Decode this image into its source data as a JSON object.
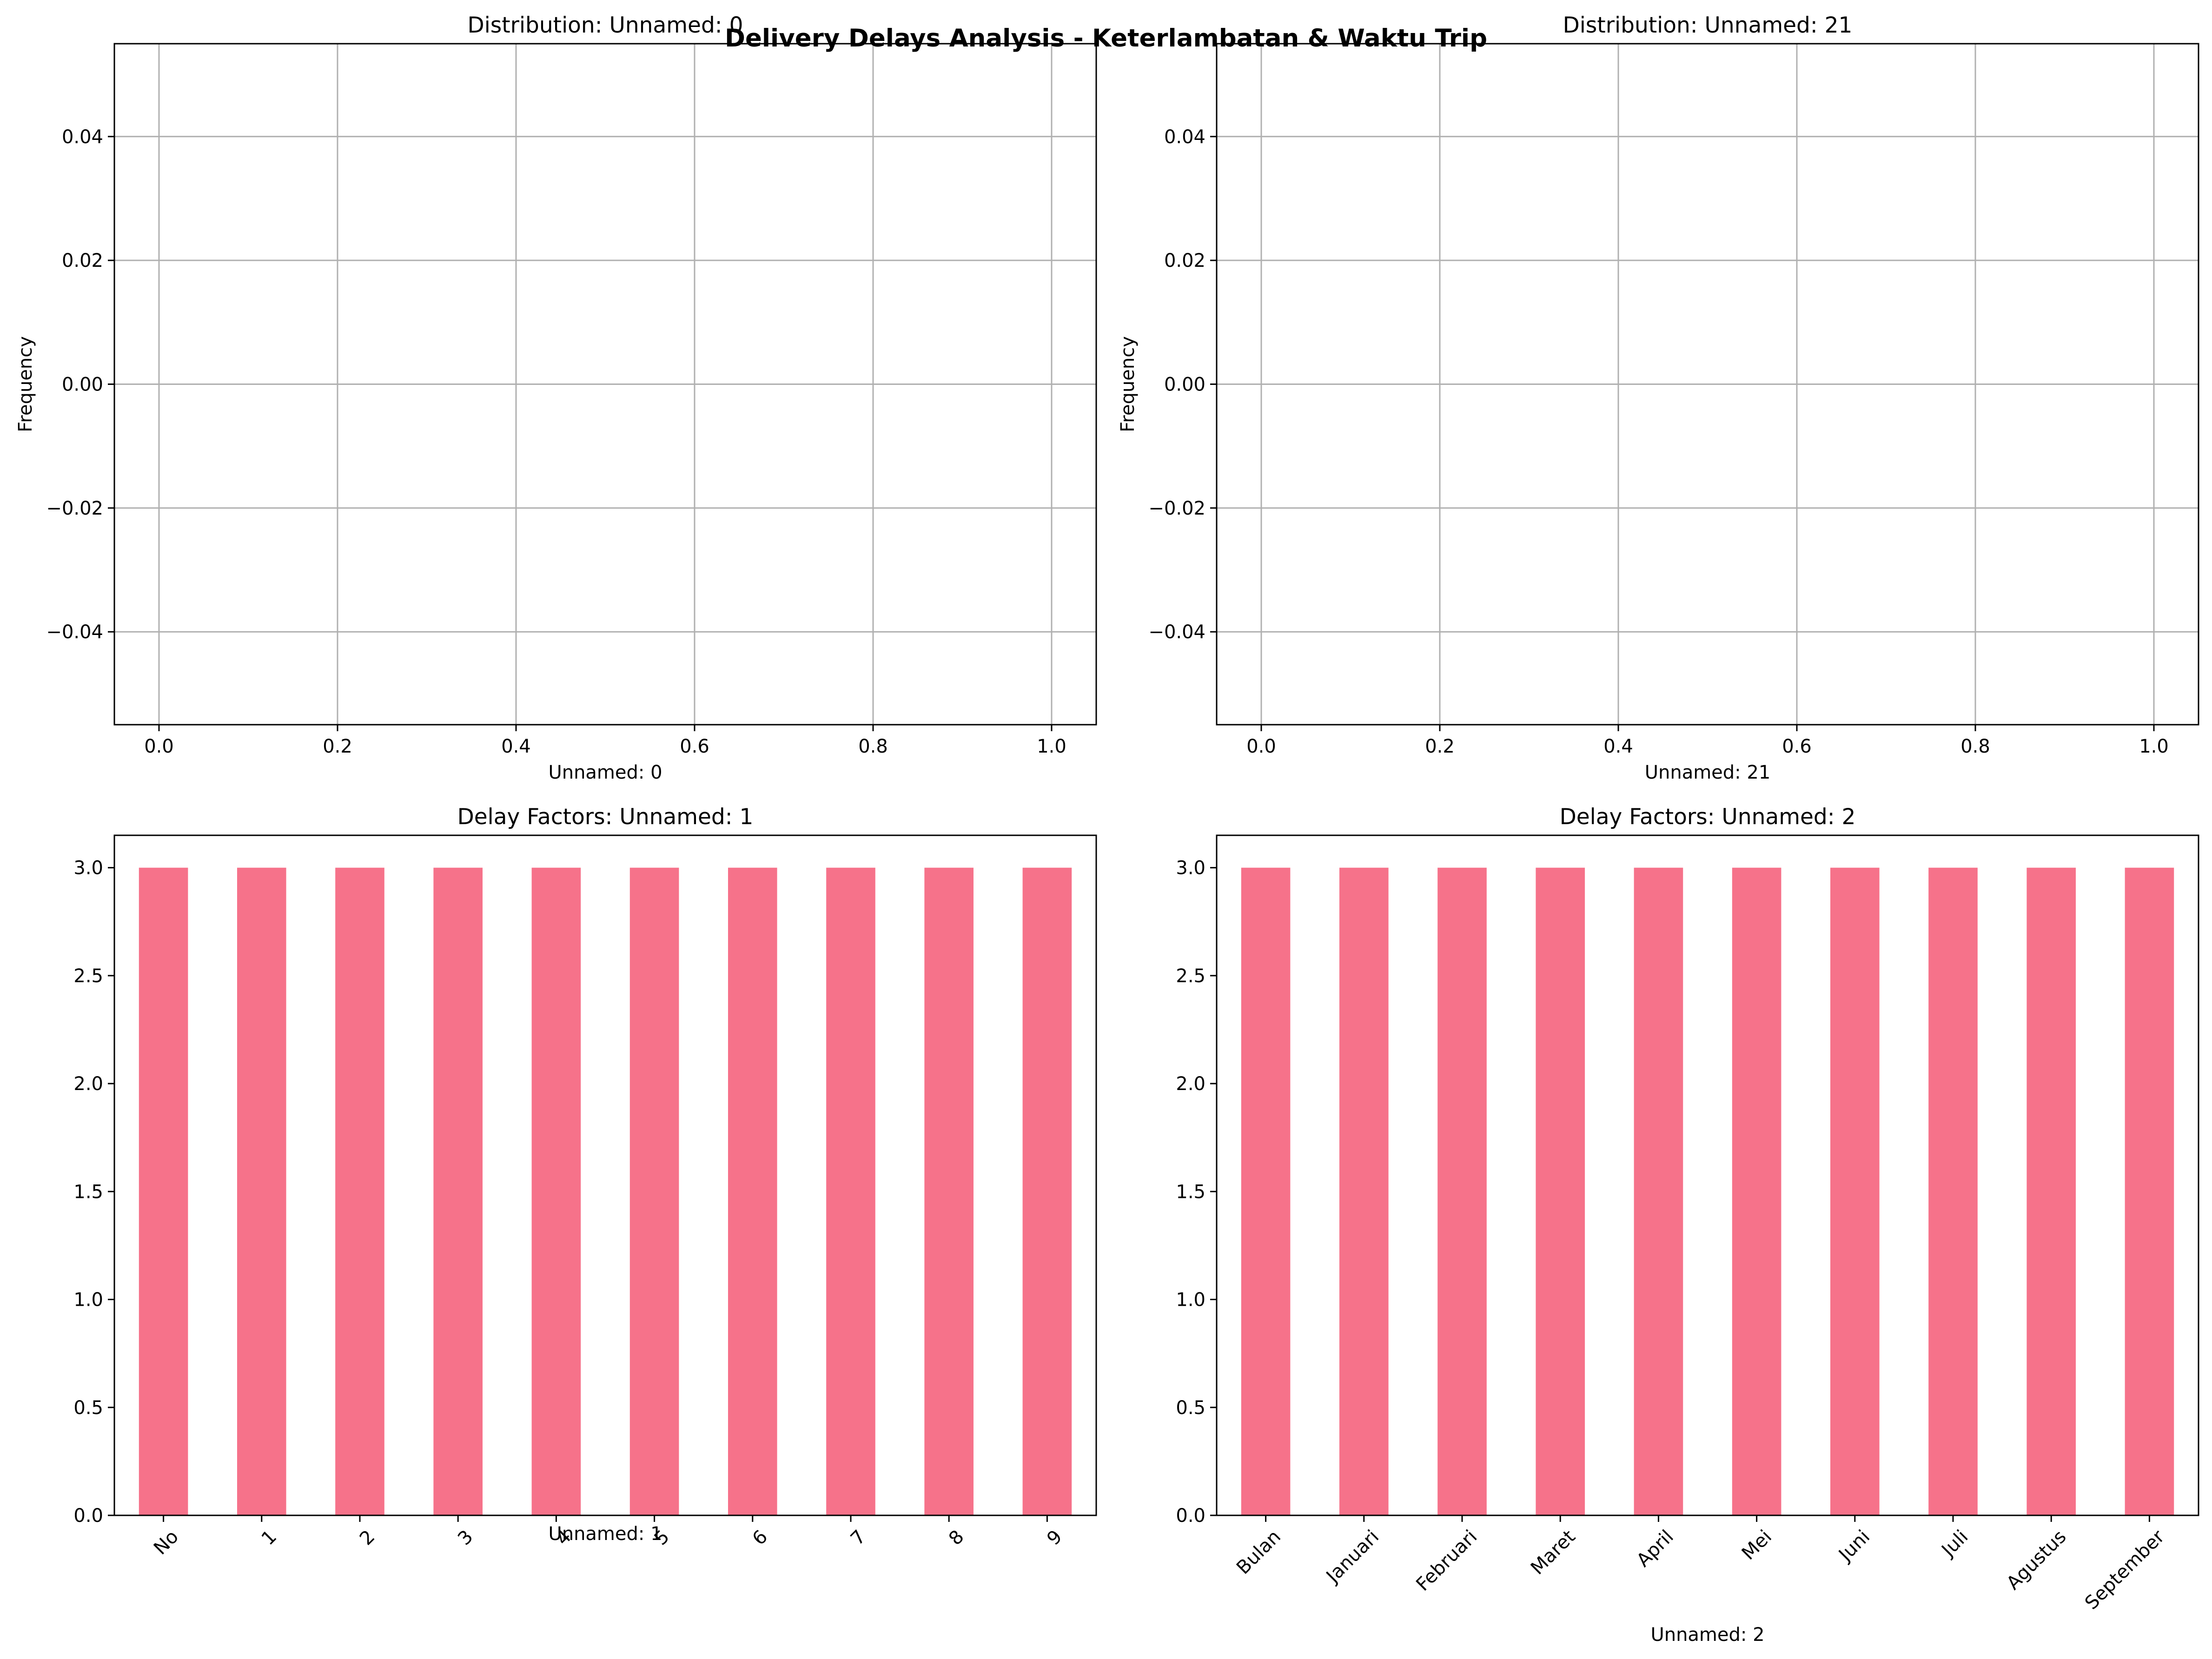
{
  "figure": {
    "suptitle": "Delivery Delays Analysis - Keterlambatan & Waktu Trip"
  },
  "chart_data": [
    {
      "type": "histogram",
      "title": "Distribution: Unnamed: 0",
      "xlabel": "Unnamed: 0",
      "ylabel": "Frequency",
      "xlim": [
        -0.05,
        1.05
      ],
      "ylim": [
        -0.055,
        0.055
      ],
      "xticks": [
        "0.0",
        "0.2",
        "0.4",
        "0.6",
        "0.8",
        "1.0"
      ],
      "yticks": [
        "−0.04",
        "−0.02",
        "0.00",
        "0.02",
        "0.04"
      ],
      "grid": true,
      "values": []
    },
    {
      "type": "histogram",
      "title": "Distribution: Unnamed: 21",
      "xlabel": "Unnamed: 21",
      "ylabel": "Frequency",
      "xlim": [
        -0.05,
        1.05
      ],
      "ylim": [
        -0.055,
        0.055
      ],
      "xticks": [
        "0.0",
        "0.2",
        "0.4",
        "0.6",
        "0.8",
        "1.0"
      ],
      "yticks": [
        "−0.04",
        "−0.02",
        "0.00",
        "0.02",
        "0.04"
      ],
      "grid": true,
      "values": []
    },
    {
      "type": "bar",
      "title": "Delay Factors: Unnamed: 1",
      "xlabel": "Unnamed: 1",
      "ylabel": "",
      "categories": [
        "No",
        "1",
        "2",
        "3",
        "4",
        "5",
        "6",
        "7",
        "8",
        "9"
      ],
      "values": [
        3,
        3,
        3,
        3,
        3,
        3,
        3,
        3,
        3,
        3
      ],
      "ylim": [
        0,
        3.15
      ],
      "yticks": [
        "0.0",
        "0.5",
        "1.0",
        "1.5",
        "2.0",
        "2.5",
        "3.0"
      ],
      "color": "#f6728a",
      "grid": false
    },
    {
      "type": "bar",
      "title": "Delay Factors: Unnamed: 2",
      "xlabel": "Unnamed: 2",
      "ylabel": "",
      "categories": [
        "Bulan",
        "Januari",
        "Februari",
        "Maret",
        "April",
        "Mei",
        "Juni",
        "Juli",
        "Agustus",
        "September"
      ],
      "values": [
        3,
        3,
        3,
        3,
        3,
        3,
        3,
        3,
        3,
        3
      ],
      "ylim": [
        0,
        3.15
      ],
      "yticks": [
        "0.0",
        "0.5",
        "1.0",
        "1.5",
        "2.0",
        "2.5",
        "3.0"
      ],
      "color": "#f6728a",
      "grid": false
    }
  ]
}
